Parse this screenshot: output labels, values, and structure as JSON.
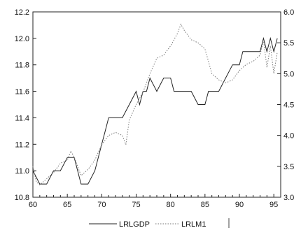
{
  "chart_data": {
    "type": "line",
    "title": "",
    "xlabel": "",
    "ylabel": "",
    "x_range": [
      60,
      96
    ],
    "x_ticks": [
      60,
      65,
      70,
      75,
      80,
      85,
      90,
      95
    ],
    "y_left": {
      "ylim": [
        10.8,
        12.2
      ],
      "ticks": [
        10.8,
        11.0,
        11.2,
        11.4,
        11.6,
        11.8,
        12.0,
        12.2
      ],
      "tick_labels": [
        "10.8",
        "11.0",
        "11.2",
        "11.4",
        "11.6",
        "11.8",
        "12.0",
        "12.2"
      ]
    },
    "y_right": {
      "ylim": [
        3.0,
        6.0
      ],
      "ticks": [
        3.0,
        3.5,
        4.0,
        4.5,
        5.0,
        5.5,
        6.0
      ],
      "tick_labels": [
        "3.0",
        "3.5",
        "4.0",
        "4.5",
        "5.0",
        "5.5",
        "6.0"
      ]
    },
    "grid": false,
    "legend_position": "bottom-center",
    "series": [
      {
        "name": "LRLGDP",
        "axis": "left",
        "style": "solid",
        "color": "#222222",
        "x": [
          60.0,
          60.5,
          61.0,
          62.0,
          63.0,
          64.0,
          65.0,
          66.0,
          66.5,
          67.0,
          68.0,
          69.0,
          69.5,
          70.0,
          70.5,
          71.0,
          72.0,
          73.0,
          74.0,
          75.0,
          75.5,
          76.0,
          76.5,
          77.0,
          78.0,
          79.0,
          80.0,
          80.5,
          81.0,
          82.0,
          83.0,
          84.0,
          85.0,
          85.5,
          86.0,
          87.0,
          88.0,
          89.0,
          90.0,
          90.5,
          91.0,
          92.0,
          93.0,
          93.5,
          94.0,
          94.5,
          95.0,
          95.5
        ],
        "values": [
          11.0,
          10.95,
          10.9,
          10.9,
          11.0,
          11.0,
          11.1,
          11.1,
          11.0,
          10.9,
          10.9,
          11.0,
          11.1,
          11.2,
          11.3,
          11.4,
          11.4,
          11.4,
          11.5,
          11.6,
          11.5,
          11.6,
          11.6,
          11.7,
          11.6,
          11.7,
          11.7,
          11.6,
          11.6,
          11.6,
          11.6,
          11.5,
          11.5,
          11.6,
          11.6,
          11.6,
          11.7,
          11.8,
          11.8,
          11.9,
          11.9,
          11.9,
          11.9,
          12.0,
          11.9,
          12.0,
          11.9,
          12.0
        ]
      },
      {
        "name": "LRLM1",
        "axis": "right",
        "style": "dotted",
        "color": "#777777",
        "x": [
          60.0,
          60.5,
          61.0,
          62.0,
          63.0,
          64.0,
          65.0,
          65.5,
          66.0,
          67.0,
          68.0,
          69.0,
          70.0,
          71.0,
          72.0,
          73.0,
          73.5,
          74.0,
          75.0,
          76.0,
          77.0,
          78.0,
          79.0,
          80.0,
          81.0,
          81.5,
          82.0,
          83.0,
          84.0,
          85.0,
          86.0,
          87.0,
          88.0,
          89.0,
          90.0,
          91.0,
          92.0,
          93.0,
          93.5,
          94.0,
          94.5,
          95.0,
          95.5
        ],
        "values": [
          3.5,
          3.25,
          3.2,
          3.3,
          3.4,
          3.55,
          3.6,
          3.75,
          3.65,
          3.35,
          3.45,
          3.6,
          3.85,
          4.0,
          4.05,
          4.0,
          3.85,
          4.25,
          4.5,
          4.7,
          5.0,
          5.25,
          5.3,
          5.45,
          5.65,
          5.8,
          5.7,
          5.55,
          5.5,
          5.4,
          5.0,
          4.9,
          4.85,
          4.9,
          5.05,
          5.15,
          5.2,
          5.3,
          5.55,
          5.1,
          5.45,
          5.0,
          5.35
        ]
      }
    ]
  }
}
